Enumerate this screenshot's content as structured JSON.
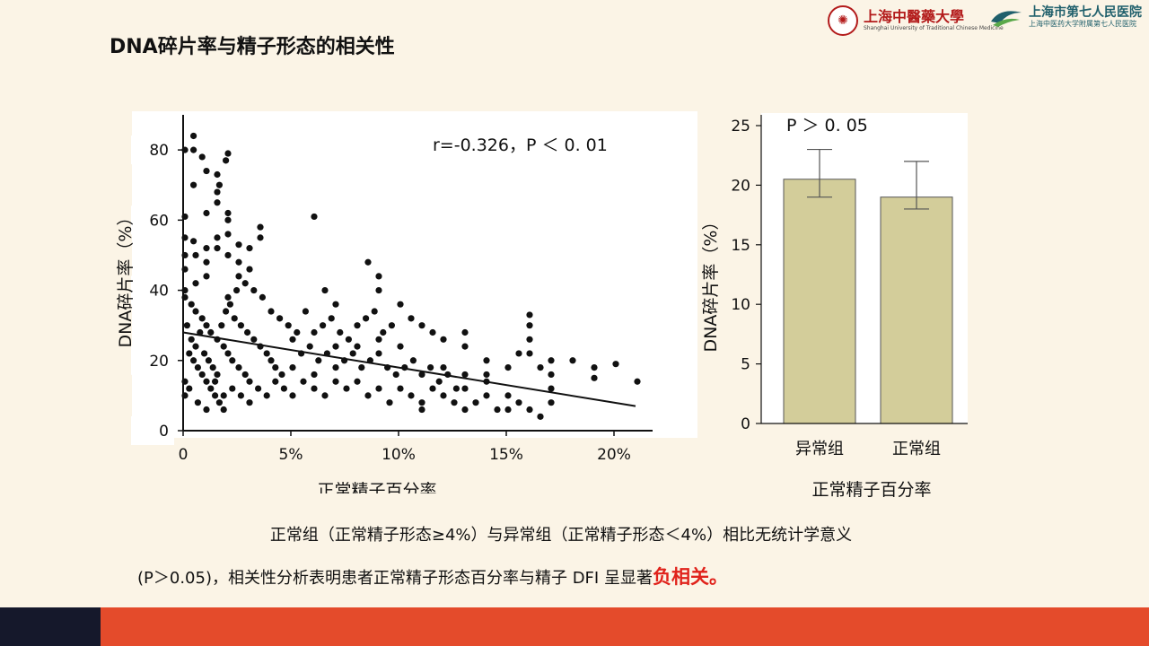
{
  "slide": {
    "title": "DNA碎片率与精子形态的相关性"
  },
  "logos": {
    "university": {
      "name": "上海中醫藥大學",
      "sub": "Shanghai University of Traditional Chinese Medicine",
      "seal": "seal-icon"
    },
    "hospital": {
      "name": "上海市第七人民医院",
      "sub": "上海中医药大学附属第七人民医院",
      "mark": "hospital-logo-icon"
    }
  },
  "caption": {
    "line1": "正常组（正常精子形态≥4%）与异常组（正常精子形态＜4%）相比无统计学意义",
    "line2_prefix": "(P＞0.05)，相关性分析表明患者正常精子形态百分率与精子 DFI 呈显著",
    "line2_emphasis": "负相关。"
  },
  "colors": {
    "background": "#fbf4e6",
    "bar_fill": "#d3cd9a",
    "emphasis": "#e0221b",
    "footer_dark": "#15182b",
    "footer_orange": "#e44b2b"
  },
  "chart_data": [
    {
      "type": "scatter",
      "title": "",
      "annotation": "r=-0.326，P ＜ 0. 01",
      "xlabel": "正常精子百分率",
      "ylabel": "DNA碎片率（%）",
      "xlim": [
        0,
        22
      ],
      "ylim": [
        0,
        90
      ],
      "x_ticks": [
        {
          "value": 0,
          "label": "0"
        },
        {
          "value": 5,
          "label": "5%"
        },
        {
          "value": 10,
          "label": "10%"
        },
        {
          "value": 15,
          "label": "15%"
        },
        {
          "value": 20,
          "label": "20%"
        }
      ],
      "y_ticks": [
        {
          "value": 0,
          "label": "0"
        },
        {
          "value": 20,
          "label": "20"
        },
        {
          "value": 40,
          "label": "40"
        },
        {
          "value": 60,
          "label": "60"
        },
        {
          "value": 80,
          "label": "80"
        }
      ],
      "trendline": {
        "x": [
          0,
          21
        ],
        "y": [
          28,
          7
        ]
      },
      "points": [
        [
          0,
          80
        ],
        [
          0,
          61
        ],
        [
          0.4,
          84
        ],
        [
          0.4,
          80
        ],
        [
          0.8,
          78
        ],
        [
          1,
          74
        ],
        [
          1.5,
          73
        ],
        [
          1.6,
          70
        ],
        [
          1.9,
          77
        ],
        [
          2,
          79
        ],
        [
          1.5,
          68
        ],
        [
          1.5,
          65
        ],
        [
          2,
          62
        ],
        [
          2,
          60
        ],
        [
          3.5,
          58
        ],
        [
          6,
          61
        ],
        [
          0.4,
          70
        ],
        [
          1,
          62
        ],
        [
          0,
          55
        ],
        [
          0,
          50
        ],
        [
          0,
          46
        ],
        [
          0.4,
          54
        ],
        [
          0.5,
          50
        ],
        [
          1,
          52
        ],
        [
          1,
          48
        ],
        [
          1.5,
          55
        ],
        [
          1.5,
          52
        ],
        [
          2,
          50
        ],
        [
          2,
          56
        ],
        [
          2.5,
          53
        ],
        [
          2.5,
          48
        ],
        [
          3,
          52
        ],
        [
          3.5,
          55
        ],
        [
          3,
          46
        ],
        [
          2.5,
          44
        ],
        [
          1,
          44
        ],
        [
          0.5,
          42
        ],
        [
          0,
          40
        ],
        [
          0,
          38
        ],
        [
          0.3,
          36
        ],
        [
          0.5,
          34
        ],
        [
          0.8,
          32
        ],
        [
          1,
          30
        ],
        [
          1.2,
          28
        ],
        [
          1.5,
          26
        ],
        [
          1.8,
          24
        ],
        [
          2,
          22
        ],
        [
          2.2,
          20
        ],
        [
          2.5,
          18
        ],
        [
          2.8,
          16
        ],
        [
          3,
          14
        ],
        [
          0.2,
          22
        ],
        [
          0.4,
          20
        ],
        [
          0.6,
          18
        ],
        [
          0.8,
          16
        ],
        [
          1,
          14
        ],
        [
          1.2,
          12
        ],
        [
          1.4,
          10
        ],
        [
          1.6,
          8
        ],
        [
          1.8,
          6
        ],
        [
          0.1,
          30
        ],
        [
          0.3,
          26
        ],
        [
          0.5,
          24
        ],
        [
          0.7,
          28
        ],
        [
          0.9,
          22
        ],
        [
          1.1,
          20
        ],
        [
          1.3,
          18
        ],
        [
          1.5,
          16
        ],
        [
          1.7,
          30
        ],
        [
          1.9,
          34
        ],
        [
          2.1,
          36
        ],
        [
          2.3,
          32
        ],
        [
          2.6,
          30
        ],
        [
          2.9,
          28
        ],
        [
          3.2,
          26
        ],
        [
          3.5,
          24
        ],
        [
          3.8,
          22
        ],
        [
          4,
          20
        ],
        [
          4.2,
          18
        ],
        [
          4.5,
          16
        ],
        [
          0,
          10
        ],
        [
          0,
          14
        ],
        [
          0.2,
          12
        ],
        [
          0.6,
          8
        ],
        [
          1,
          6
        ],
        [
          1.4,
          14
        ],
        [
          1.8,
          10
        ],
        [
          2.2,
          12
        ],
        [
          2.6,
          10
        ],
        [
          3,
          8
        ],
        [
          3.4,
          12
        ],
        [
          3.8,
          10
        ],
        [
          4.2,
          14
        ],
        [
          4.6,
          12
        ],
        [
          5,
          10
        ],
        [
          5.5,
          14
        ],
        [
          6,
          12
        ],
        [
          6.5,
          10
        ],
        [
          7,
          14
        ],
        [
          7.5,
          12
        ],
        [
          2,
          38
        ],
        [
          2.4,
          40
        ],
        [
          2.8,
          42
        ],
        [
          3.2,
          40
        ],
        [
          3.6,
          38
        ],
        [
          4,
          34
        ],
        [
          4.4,
          32
        ],
        [
          4.8,
          30
        ],
        [
          5.2,
          28
        ],
        [
          5.6,
          34
        ],
        [
          6,
          28
        ],
        [
          6.4,
          30
        ],
        [
          6.8,
          32
        ],
        [
          7.2,
          28
        ],
        [
          7.6,
          26
        ],
        [
          8,
          30
        ],
        [
          8.4,
          32
        ],
        [
          8.8,
          34
        ],
        [
          9.2,
          28
        ],
        [
          9.6,
          30
        ],
        [
          5,
          26
        ],
        [
          5.4,
          22
        ],
        [
          5.8,
          24
        ],
        [
          6.2,
          20
        ],
        [
          6.6,
          22
        ],
        [
          7,
          24
        ],
        [
          7.4,
          20
        ],
        [
          7.8,
          22
        ],
        [
          8.2,
          18
        ],
        [
          8.6,
          20
        ],
        [
          9,
          22
        ],
        [
          9.4,
          18
        ],
        [
          9.8,
          16
        ],
        [
          10.2,
          18
        ],
        [
          10.6,
          20
        ],
        [
          11,
          16
        ],
        [
          11.4,
          18
        ],
        [
          11.8,
          14
        ],
        [
          12.2,
          16
        ],
        [
          12.6,
          12
        ],
        [
          6.5,
          40
        ],
        [
          7,
          36
        ],
        [
          8.5,
          48
        ],
        [
          9,
          44
        ],
        [
          9,
          40
        ],
        [
          10,
          36
        ],
        [
          10.5,
          32
        ],
        [
          11,
          30
        ],
        [
          11.5,
          28
        ],
        [
          12,
          26
        ],
        [
          13,
          24
        ],
        [
          13,
          28
        ],
        [
          14,
          20
        ],
        [
          14,
          16
        ],
        [
          15,
          18
        ],
        [
          15.5,
          22
        ],
        [
          16,
          33
        ],
        [
          16,
          30
        ],
        [
          16,
          26
        ],
        [
          16,
          22
        ],
        [
          8,
          14
        ],
        [
          8.5,
          10
        ],
        [
          9,
          12
        ],
        [
          9.5,
          8
        ],
        [
          10,
          12
        ],
        [
          10.5,
          10
        ],
        [
          11,
          8
        ],
        [
          11.5,
          12
        ],
        [
          12,
          10
        ],
        [
          12.5,
          8
        ],
        [
          13,
          12
        ],
        [
          13.5,
          8
        ],
        [
          14,
          10
        ],
        [
          14.5,
          6
        ],
        [
          15,
          10
        ],
        [
          15.5,
          8
        ],
        [
          16,
          6
        ],
        [
          16.5,
          4
        ],
        [
          17,
          8
        ],
        [
          17,
          12
        ],
        [
          16.5,
          18
        ],
        [
          17,
          20
        ],
        [
          17,
          16
        ],
        [
          18,
          20
        ],
        [
          19,
          18
        ],
        [
          19,
          15
        ],
        [
          20,
          19
        ],
        [
          21,
          14
        ],
        [
          15,
          6
        ],
        [
          13,
          6
        ],
        [
          11,
          6
        ],
        [
          12,
          18
        ],
        [
          13,
          16
        ],
        [
          14,
          14
        ],
        [
          10,
          24
        ],
        [
          9,
          26
        ],
        [
          8,
          24
        ],
        [
          7,
          18
        ],
        [
          6,
          16
        ],
        [
          5,
          18
        ]
      ]
    },
    {
      "type": "bar",
      "title": "",
      "annotation": "P ＞ 0. 05",
      "categories": [
        "异常组",
        "正常组"
      ],
      "values": [
        20.5,
        19
      ],
      "error_low": [
        19,
        18
      ],
      "error_high": [
        23,
        22
      ],
      "xlabel": "正常精子百分率",
      "ylabel": "DNA碎片率（%）",
      "ylim": [
        0,
        26
      ],
      "y_ticks": [
        0,
        5,
        10,
        15,
        20,
        25
      ]
    }
  ]
}
